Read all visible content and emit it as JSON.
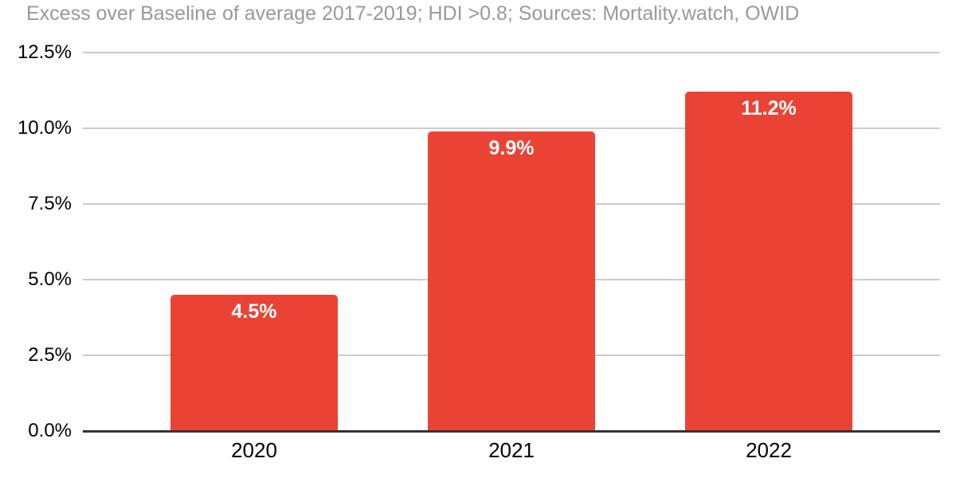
{
  "chart_data": {
    "type": "bar",
    "title": "Excess over Baseline of average 2017-2019; HDI >0.8; Sources: Mortality.watch, OWID",
    "categories": [
      "2020",
      "2021",
      "2022"
    ],
    "values": [
      4.5,
      9.9,
      11.2
    ],
    "value_labels": [
      "4.5%",
      "9.9%",
      "11.2%"
    ],
    "xlabel": "",
    "ylabel": "",
    "ylim": [
      0,
      12.5
    ],
    "ytick_step": 2.5,
    "ytick_labels": [
      "0.0%",
      "2.5%",
      "5.0%",
      "7.5%",
      "10.0%",
      "12.5%"
    ],
    "grid": true,
    "legend_position": "none"
  },
  "colors": {
    "bar": "#EA4335",
    "title_text": "#999999",
    "gridline": "#cccccc",
    "axis_line": "#333333",
    "tick_label": "#000000",
    "bar_label": "#ffffff",
    "background": "#ffffff"
  }
}
